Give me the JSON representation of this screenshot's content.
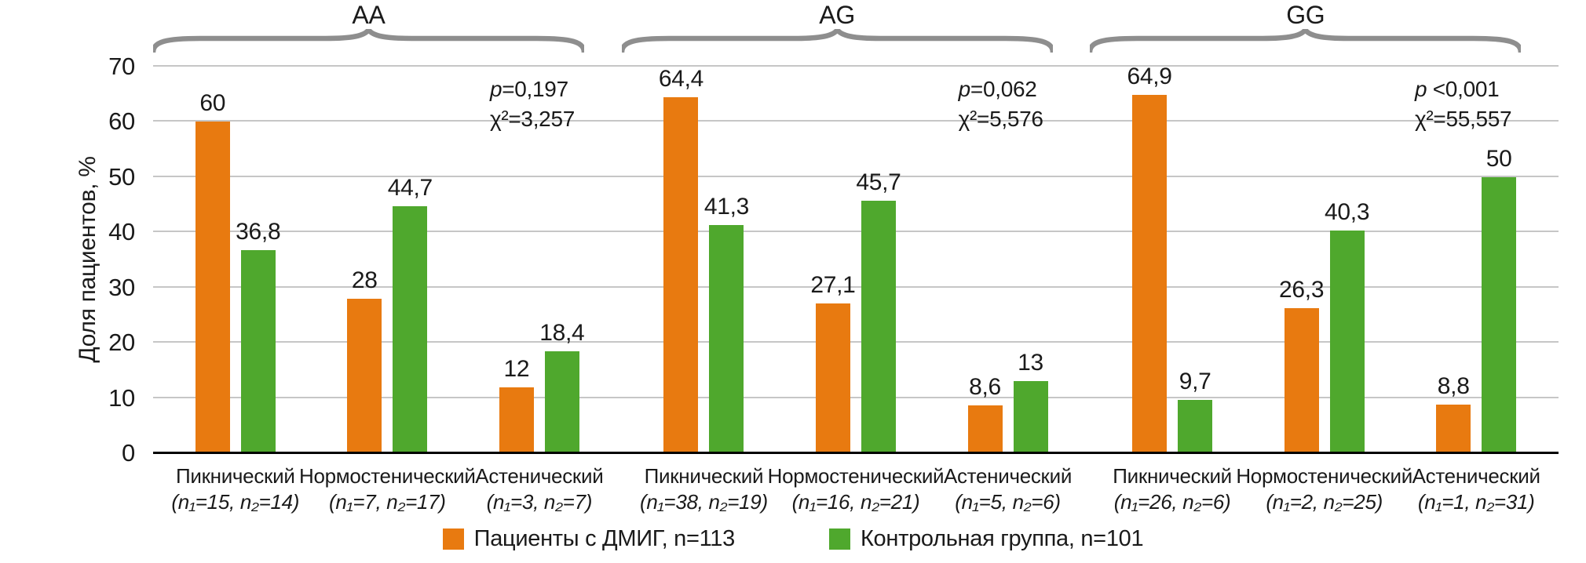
{
  "chart_data": {
    "type": "bar",
    "title": "",
    "ylabel": "Доля пациентов, %",
    "ylim": [
      0,
      70
    ],
    "yticks": [
      0,
      10,
      20,
      30,
      40,
      50,
      60,
      70
    ],
    "grid": "horizontal",
    "legend_position": "bottom",
    "series": [
      {
        "name": "Пациенты с ДМИГ, n=113",
        "color": "#e87a10"
      },
      {
        "name": "Контрольная группа, n=101",
        "color": "#4fa82d"
      }
    ],
    "brace_color": "#8e8e8e",
    "groups": [
      {
        "genotype": "AA",
        "p_label": "p",
        "p_value": "=0,197",
        "chi2": "χ²=3,257",
        "categories": [
          {
            "name": "Пикнический",
            "n": "(n₁=15, n₂=14)",
            "values": [
              60,
              36.8
            ],
            "labels": [
              "60",
              "36,8"
            ]
          },
          {
            "name": "Нормостенический",
            "n": "(n₁=7, n₂=17)",
            "values": [
              28,
              44.7
            ],
            "labels": [
              "28",
              "44,7"
            ]
          },
          {
            "name": "Астенический",
            "n": "(n₁=3, n₂=7)",
            "values": [
              12,
              18.4
            ],
            "labels": [
              "12",
              "18,4"
            ]
          }
        ]
      },
      {
        "genotype": "AG",
        "p_label": "p",
        "p_value": "=0,062",
        "chi2": "χ²=5,576",
        "categories": [
          {
            "name": "Пикнический",
            "n": "(n₁=38, n₂=19)",
            "values": [
              64.4,
              41.3
            ],
            "labels": [
              "64,4",
              "41,3"
            ]
          },
          {
            "name": "Нормостенический",
            "n": "(n₁=16, n₂=21)",
            "values": [
              27.1,
              45.7
            ],
            "labels": [
              "27,1",
              "45,7"
            ]
          },
          {
            "name": "Астенический",
            "n": "(n₁=5, n₂=6)",
            "values": [
              8.6,
              13
            ],
            "labels": [
              "8,6",
              "13"
            ]
          }
        ]
      },
      {
        "genotype": "GG",
        "p_label": "p",
        "p_value": " <0,001",
        "chi2": "χ²=55,557",
        "categories": [
          {
            "name": "Пикнический",
            "n": "(n₁=26, n₂=6)",
            "values": [
              64.9,
              9.7
            ],
            "labels": [
              "64,9",
              "9,7"
            ]
          },
          {
            "name": "Нормостенический",
            "n": "(n₁=2, n₂=25)",
            "values": [
              26.3,
              40.3
            ],
            "labels": [
              "26,3",
              "40,3"
            ]
          },
          {
            "name": "Астенический",
            "n": "(n₁=1, n₂=31)",
            "values": [
              8.8,
              50
            ],
            "labels": [
              "8,8",
              "50"
            ]
          }
        ]
      }
    ]
  }
}
